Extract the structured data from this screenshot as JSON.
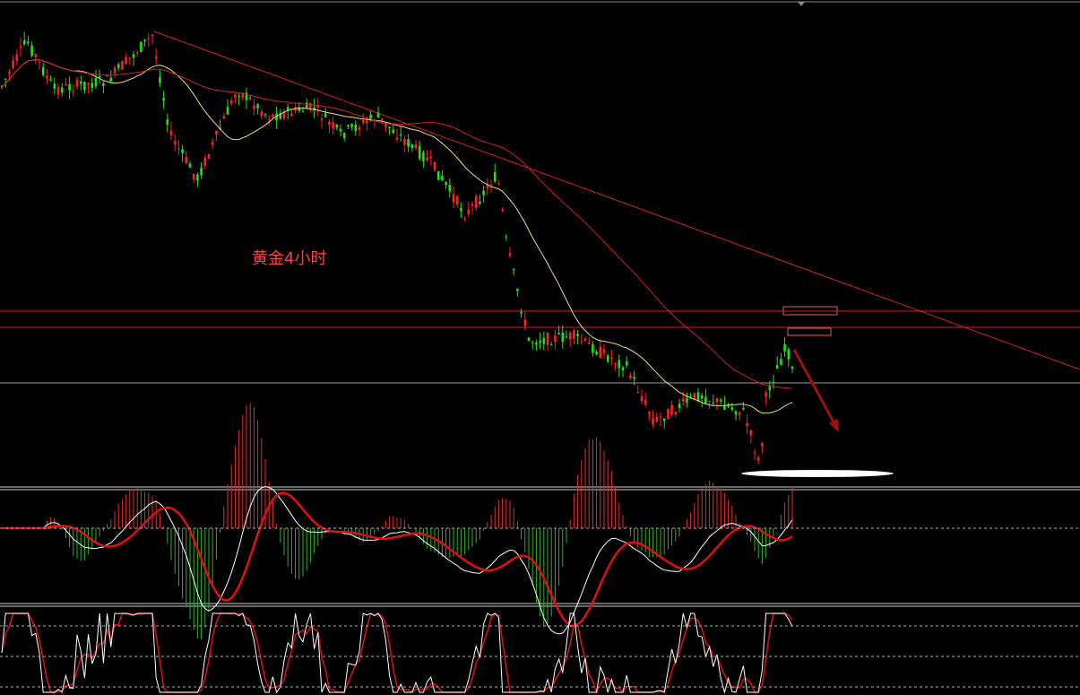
{
  "annotation": "黄金4小时"
}
